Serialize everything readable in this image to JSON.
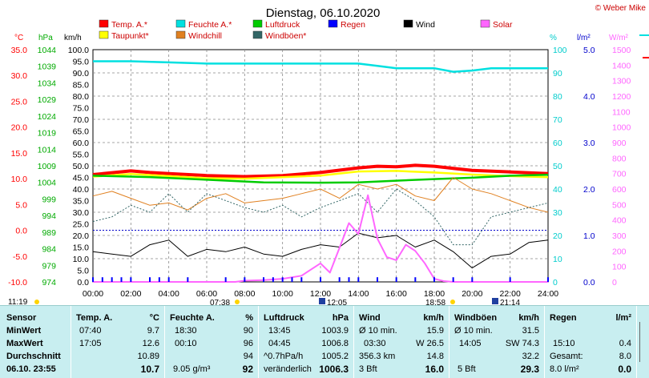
{
  "copyright": "© Weber Mike",
  "chart_data": {
    "type": "line",
    "title": "Dienstag, 06.10.2020",
    "x_ticks": [
      "00:00",
      "02:00",
      "04:00",
      "06:00",
      "08:00",
      "10:00",
      "12:00",
      "14:00",
      "16:00",
      "18:00",
      "20:00",
      "22:00",
      "24:00"
    ],
    "xlim_hours": [
      0,
      24
    ],
    "grid": true,
    "legend": [
      {
        "label": "Temp. A.*",
        "color": "#ff0000"
      },
      {
        "label": "Feuchte A.*",
        "color": "#00e0e0"
      },
      {
        "label": "Luftdruck",
        "color": "#00cc00"
      },
      {
        "label": "Regen",
        "color": "#0000ff"
      },
      {
        "label": "Wind",
        "color": "#000000"
      },
      {
        "label": "Solar",
        "color": "#ff66ff"
      },
      {
        "label": "Taupunkt*",
        "color": "#ffff00"
      },
      {
        "label": "Windchill",
        "color": "#e08020"
      },
      {
        "label": "Windböen*",
        "color": "#336666"
      }
    ],
    "axes": {
      "temp": {
        "unit": "°C",
        "min": -10,
        "max": 35,
        "ticks": [
          "35.0",
          "30.0",
          "25.0",
          "20.0",
          "15.0",
          "10.0",
          "5.0",
          "0.0",
          "-5.0",
          "-10.0"
        ]
      },
      "pressure": {
        "unit": "hPa",
        "min": 974,
        "max": 1044,
        "ticks": [
          "1044",
          "1039",
          "1034",
          "1029",
          "1024",
          "1019",
          "1014",
          "1009",
          "1004",
          "999",
          "994",
          "989",
          "984",
          "979",
          "974"
        ]
      },
      "wind": {
        "unit": "km/h",
        "min": 0,
        "max": 100,
        "ticks": [
          "100.0",
          "95.0",
          "90.0",
          "85.0",
          "80.0",
          "75.0",
          "70.0",
          "65.0",
          "60.0",
          "55.0",
          "50.0",
          "45.0",
          "40.0",
          "35.0",
          "30.0",
          "25.0",
          "20.0",
          "15.0",
          "10.0",
          "5.0",
          "0.0"
        ]
      },
      "humidity": {
        "unit": "%",
        "min": 0,
        "max": 100,
        "ticks": [
          "100",
          "90",
          "80",
          "70",
          "60",
          "50",
          "40",
          "30",
          "20",
          "10",
          "0"
        ]
      },
      "rain": {
        "unit": "l/m²",
        "min": 0,
        "max": 5,
        "ticks": [
          "5.0",
          "4.0",
          "3.0",
          "2.0",
          "1.0",
          "0.0"
        ]
      },
      "solar": {
        "unit": "W/m²",
        "min": 0,
        "max": 1500,
        "ticks": [
          "1500",
          "1400",
          "1300",
          "1200",
          "1100",
          "1000",
          "900",
          "800",
          "700",
          "600",
          "500",
          "400",
          "300",
          "200",
          "100",
          "0"
        ]
      }
    },
    "series": [
      {
        "name": "Temp. A.*",
        "axis": "temp",
        "color": "#ff0000",
        "x": [
          0,
          2,
          3,
          4,
          6,
          8,
          10,
          12,
          14,
          15,
          16,
          17,
          18,
          19,
          20,
          22,
          24
        ],
        "y": [
          10.8,
          11.5,
          11.2,
          11.0,
          10.6,
          10.4,
          10.6,
          11.2,
          12.1,
          12.4,
          12.3,
          12.6,
          12.4,
          12.0,
          11.6,
          11.3,
          11.0
        ]
      },
      {
        "name": "Taupunkt*",
        "axis": "temp",
        "color": "#ffff00",
        "x": [
          0,
          2,
          4,
          6,
          8,
          10,
          12,
          14,
          16,
          18,
          20,
          22,
          24
        ],
        "y": [
          10.4,
          10.9,
          10.5,
          10.1,
          10.0,
          10.3,
          10.6,
          11.4,
          11.5,
          11.2,
          10.8,
          10.5,
          10.3
        ]
      },
      {
        "name": "Feuchte A.*",
        "axis": "humidity",
        "color": "#00e0e0",
        "x": [
          0,
          2,
          4,
          6,
          8,
          10,
          12,
          14,
          15,
          16,
          17,
          18,
          19,
          20,
          21,
          22,
          24
        ],
        "y": [
          95,
          95,
          94.5,
          94,
          94,
          94,
          94,
          94,
          93,
          92,
          92,
          92,
          90.5,
          91,
          92,
          92,
          92
        ]
      },
      {
        "name": "Luftdruck",
        "axis": "pressure",
        "color": "#00cc00",
        "x": [
          0,
          3,
          6,
          9,
          12,
          14,
          16,
          18,
          20,
          22,
          24
        ],
        "y": [
          1006.0,
          1005.6,
          1004.8,
          1004.0,
          1003.9,
          1004.0,
          1004.5,
          1005.0,
          1005.4,
          1006.0,
          1006.3
        ]
      },
      {
        "name": "Windchill",
        "axis": "wind",
        "color": "#e08020",
        "x": [
          0,
          1,
          2,
          3,
          4,
          5,
          6,
          7,
          8,
          9,
          10,
          11,
          12,
          13,
          14,
          15,
          16,
          17,
          18,
          19,
          20,
          21,
          22,
          23,
          24
        ],
        "y": [
          37,
          39,
          36,
          33,
          34,
          31,
          36,
          38,
          34,
          35,
          36,
          38,
          40,
          36,
          42,
          40,
          42,
          37,
          35,
          45,
          40,
          38,
          35,
          32,
          30
        ]
      },
      {
        "name": "Windböen*",
        "axis": "wind",
        "color": "#336666",
        "x": [
          0,
          1,
          2,
          3,
          4,
          5,
          6,
          7,
          8,
          9,
          10,
          11,
          12,
          13,
          14,
          15,
          16,
          17,
          18,
          19,
          20,
          21,
          22,
          23,
          24
        ],
        "y": [
          26,
          28,
          33,
          30,
          38,
          30,
          38,
          35,
          32,
          30,
          33,
          28,
          32,
          35,
          38,
          30,
          40,
          35,
          28,
          16,
          16,
          28,
          30,
          32,
          34
        ]
      },
      {
        "name": "Wind",
        "axis": "wind",
        "color": "#000000",
        "x": [
          0,
          1,
          2,
          3,
          4,
          5,
          6,
          7,
          8,
          9,
          10,
          11,
          12,
          13,
          14,
          15,
          16,
          17,
          18,
          19,
          20,
          21,
          22,
          23,
          24
        ],
        "y": [
          13,
          12,
          11,
          16,
          18,
          11,
          14,
          13,
          15,
          12,
          11,
          14,
          16,
          15,
          21,
          19,
          20,
          15,
          18,
          13,
          6,
          11,
          12,
          17,
          18
        ]
      },
      {
        "name": "Solar",
        "axis": "solar",
        "color": "#ff66ff",
        "x": [
          0,
          7.5,
          8,
          9,
          10,
          11,
          12,
          12.5,
          13,
          13.5,
          14,
          14.5,
          15,
          15.5,
          16,
          16.5,
          17,
          17.5,
          18,
          18.5,
          19,
          24
        ],
        "y": [
          0,
          0,
          8,
          12,
          20,
          40,
          120,
          60,
          220,
          380,
          310,
          560,
          280,
          160,
          140,
          240,
          200,
          120,
          20,
          5,
          0,
          0
        ]
      },
      {
        "name": "Regen",
        "axis": "rain",
        "color": "#0000ff",
        "x": [
          0,
          0.5,
          1,
          1.5,
          2,
          3,
          3.5,
          4,
          5,
          7,
          8,
          9,
          9.5,
          10,
          10.5,
          11,
          12,
          13,
          13.5,
          14,
          15,
          16,
          17,
          18,
          19,
          20,
          22,
          24
        ],
        "y": [
          0.1,
          0.1,
          0.1,
          0.1,
          0.1,
          0.1,
          0.1,
          0.1,
          0.1,
          0.1,
          0.1,
          0.1,
          0.1,
          0.1,
          0.1,
          0.1,
          0.1,
          0.1,
          0.1,
          0.1,
          0.1,
          0.1,
          0.1,
          0.1,
          0.1,
          0.1,
          0.1,
          0.1
        ]
      }
    ]
  },
  "sun": {
    "sunrise": "07:38",
    "sunset": "18:58",
    "moonset": "11:19",
    "moon_a": "12:05",
    "moon_b": "21:14"
  },
  "table": {
    "rowlabels": {
      "h": "Sensor",
      "min": "MinWert",
      "max": "MaxWert",
      "avg": "Durchschnitt",
      "cur": "06.10. 23:55"
    },
    "temp": {
      "h": "Temp. A.",
      "u": "°C",
      "min_t": "07:40",
      "min_v": "9.7",
      "max_t": "17:05",
      "max_v": "12.6",
      "avg_v": "10.89",
      "cur_v": "10.7"
    },
    "hum": {
      "h": "Feuchte A.",
      "u": "%",
      "min_t": "18:30",
      "min_v": "90",
      "max_t": "00:10",
      "max_v": "96",
      "avg_v": "94",
      "cur_l": "9.05 g/m³",
      "cur_v": "92"
    },
    "pres": {
      "h": "Luftdruck",
      "u": "hPa",
      "min_t": "13:45",
      "min_v": "1003.9",
      "max_t": "04:45",
      "max_v": "1006.8",
      "avg_l": "^0.7hPa/h",
      "avg_v": "1005.2",
      "cur_l": "veränderlich",
      "cur_v": "1006.3"
    },
    "wind": {
      "h": "Wind",
      "u": "km/h",
      "min_l": "Ø 10 min.",
      "min_v": "15.9",
      "max_l": "03:30",
      "max_m": "W 26.5",
      "avg_l": "356.3 km",
      "avg_v": "14.8",
      "cur_l": "3 Bft",
      "cur_v": "16.0"
    },
    "gust": {
      "h": "Windböen",
      "u": "km/h",
      "min_l": "Ø 10 min.",
      "min_v": "31.5",
      "max_l": "14:05",
      "max_m": "SW 74.3",
      "avg_v": "32.2",
      "cur_l": "5 Bft",
      "cur_v": "29.3"
    },
    "rain": {
      "h": "Regen",
      "u": "l/m²",
      "min_v": "",
      "max_l": "15:10",
      "max_v": "0.4",
      "avg_l": "Gesamt:",
      "avg_v": "8.0",
      "cur_l": "8.0 l/m²",
      "cur_v": "0.0"
    }
  }
}
